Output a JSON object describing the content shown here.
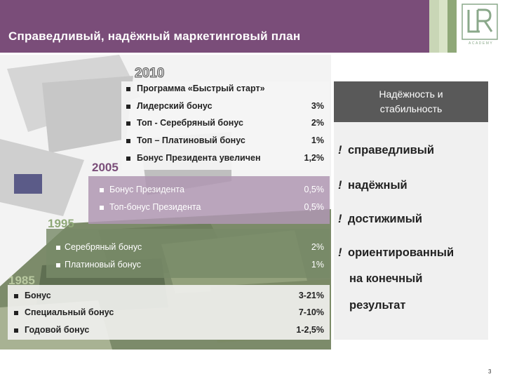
{
  "header": {
    "title": "Справедливый, надёжный маркетинговый план"
  },
  "logo": {
    "mark": "LR",
    "caption": "ACADEMY"
  },
  "tiers": [
    {
      "year": "2010",
      "items": [
        {
          "label": "Программа «Быстрый старт»",
          "value": ""
        },
        {
          "label": "Лидерский бонус",
          "value": "3%"
        },
        {
          "label": "Топ - Серебряный бонус",
          "value": "2%"
        },
        {
          "label": "Топ – Платиновый бонус",
          "value": "1%"
        },
        {
          "label": "Бонус Президента увеличен",
          "value": "1,2%"
        }
      ]
    },
    {
      "year": "2005",
      "items": [
        {
          "label": "Бонус Президента",
          "value": "0,5%"
        },
        {
          "label": "Топ-бонус Президента",
          "value": "0,5%"
        }
      ]
    },
    {
      "year": "1995",
      "items": [
        {
          "label": "Серебряный бонус",
          "value": "2%"
        },
        {
          "label": "Платиновый бонус",
          "value": "1%"
        }
      ]
    },
    {
      "year": "1985",
      "items": [
        {
          "label": "Бонус",
          "value": "3-21%"
        },
        {
          "label": "Специальный бонус",
          "value": "7-10%"
        },
        {
          "label": "Годовой бонус",
          "value": "1-2,5%"
        }
      ]
    }
  ],
  "reliability": {
    "heading_line1": "Надёжность и",
    "heading_line2": "стабильность",
    "items": [
      "справедливый",
      "надёжный",
      "достижимый",
      "ориентированный",
      "на конечный",
      "результат"
    ]
  },
  "page_number": "3"
}
